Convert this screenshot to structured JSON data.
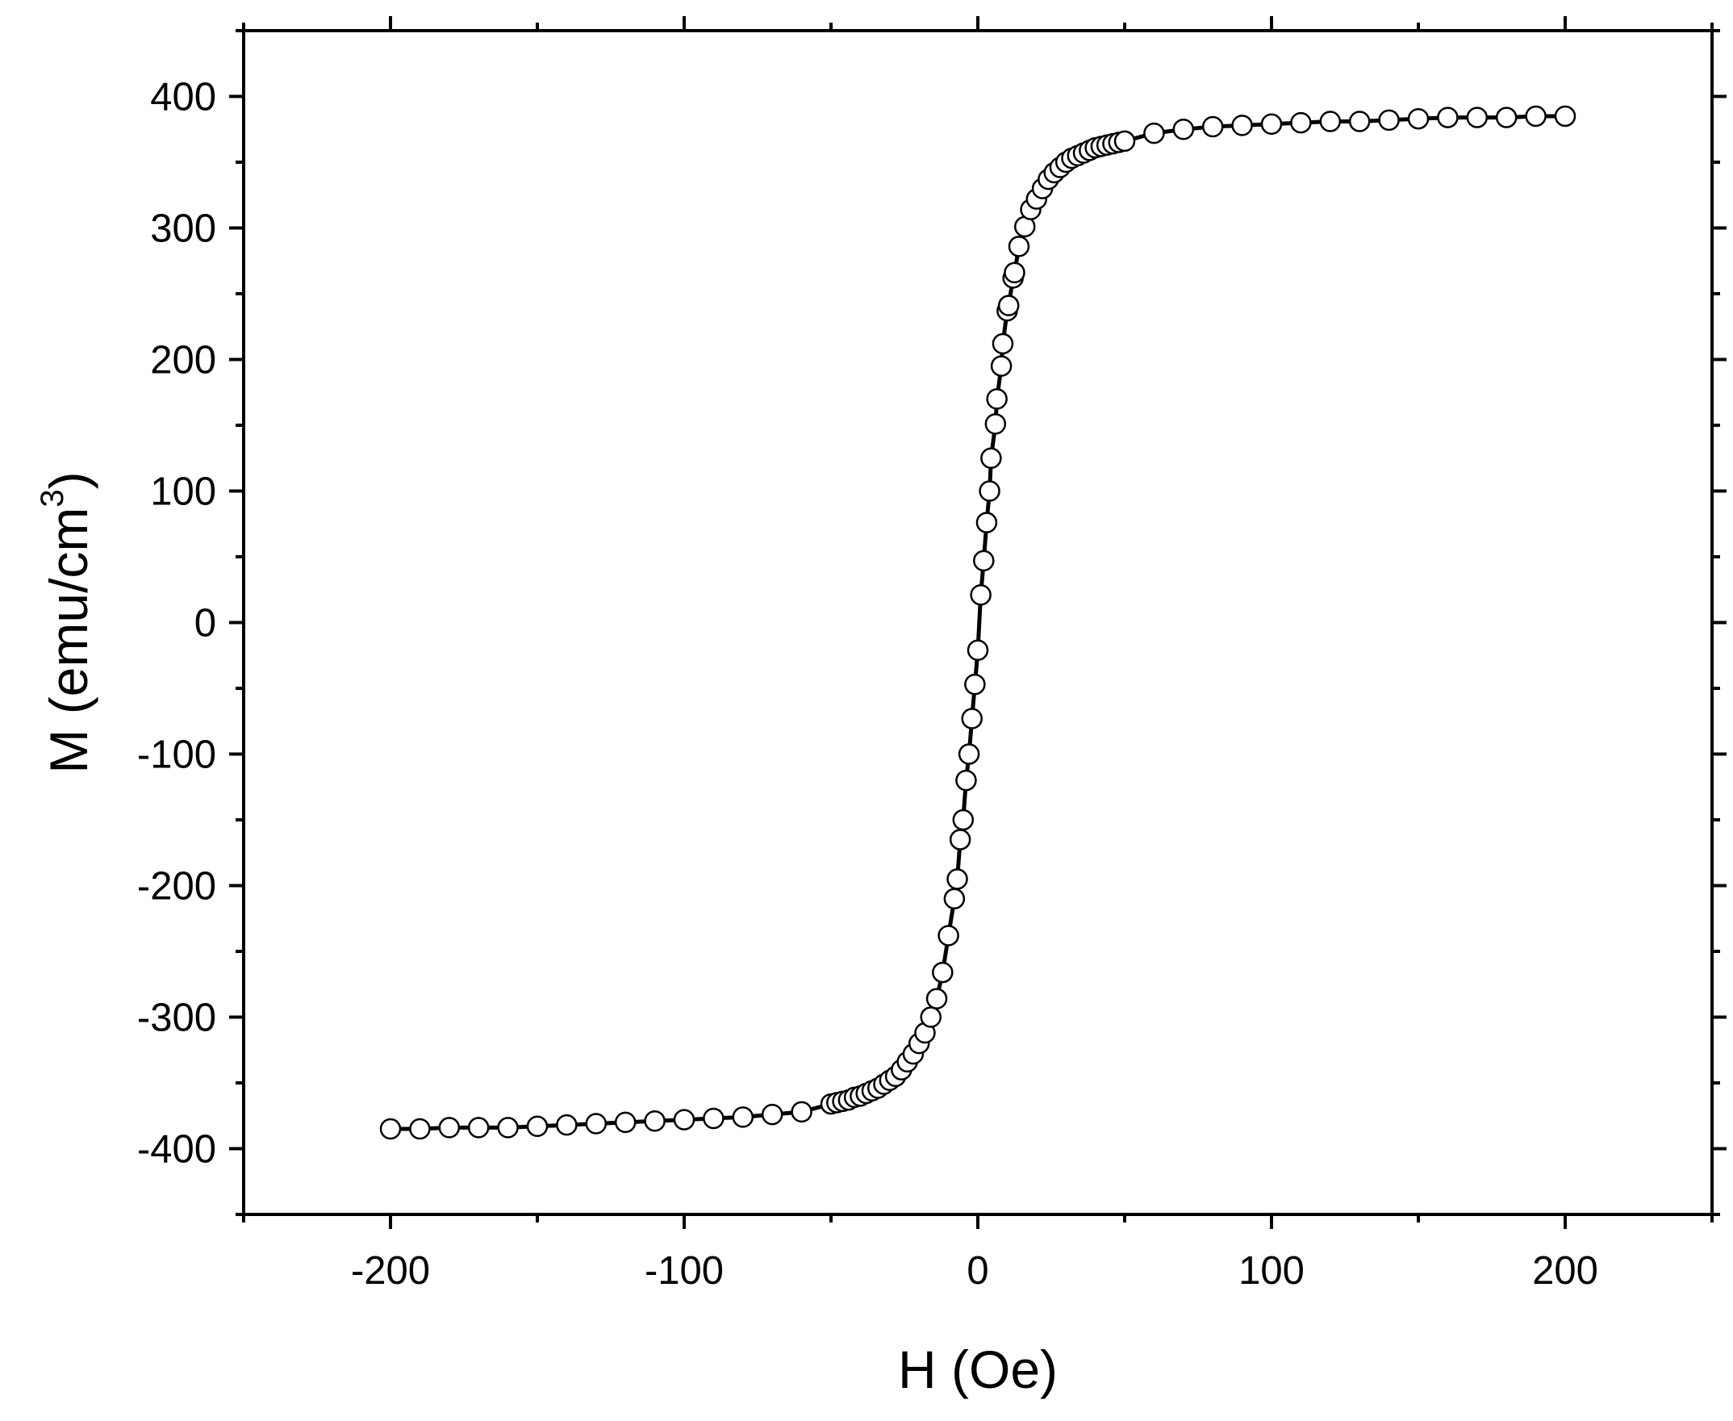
{
  "chart_data": {
    "type": "scatter",
    "xlabel": "H (Oe)",
    "ylabel": {
      "text": "M (emu/cm",
      "superscript": "3",
      "suffix": ")"
    },
    "xlim": [
      -250,
      250
    ],
    "ylim": [
      -450,
      450
    ],
    "xticks": [
      -200,
      -100,
      0,
      100,
      200
    ],
    "xtick_labels": [
      "-200",
      "-100",
      "0",
      "100",
      "200"
    ],
    "yticks": [
      -400,
      -300,
      -200,
      -100,
      0,
      100,
      200,
      300,
      400
    ],
    "ytick_labels": [
      "-400",
      "-300",
      "-200",
      "-100",
      "0",
      "100",
      "200",
      "300",
      "400"
    ],
    "x_minor_step": 50,
    "y_minor_step": 50,
    "grid": false,
    "legend": "none",
    "marker": "open-circle",
    "line_color": "#000000",
    "marker_fill": "#ffffff",
    "series": [
      {
        "points": [
          [
            -200,
            -385
          ],
          [
            -190,
            -385
          ],
          [
            -180,
            -384
          ],
          [
            -170,
            -384
          ],
          [
            -160,
            -384
          ],
          [
            -150,
            -383
          ],
          [
            -140,
            -382
          ],
          [
            -130,
            -381
          ],
          [
            -120,
            -380
          ],
          [
            -110,
            -379
          ],
          [
            -100,
            -378
          ],
          [
            -90,
            -377
          ],
          [
            -80,
            -376
          ],
          [
            -70,
            -374
          ],
          [
            -60,
            -372
          ],
          [
            -50,
            -366
          ],
          [
            -48,
            -365
          ],
          [
            -46,
            -364
          ],
          [
            -44,
            -363
          ],
          [
            -42,
            -361
          ],
          [
            -40,
            -360
          ],
          [
            -38,
            -358
          ],
          [
            -36,
            -356
          ],
          [
            -34,
            -354
          ],
          [
            -32,
            -351
          ],
          [
            -30,
            -348
          ],
          [
            -28,
            -345
          ],
          [
            -26,
            -340
          ],
          [
            -24,
            -334
          ],
          [
            -22,
            -328
          ],
          [
            -20,
            -320
          ],
          [
            -18,
            -312
          ],
          [
            -16,
            -300
          ],
          [
            -14,
            -286
          ],
          [
            -12,
            -266
          ],
          [
            -10,
            -238
          ],
          [
            -8,
            -210
          ],
          [
            -7,
            -195
          ],
          [
            -6,
            -165
          ],
          [
            -5,
            -150
          ],
          [
            -4,
            -120
          ],
          [
            -3,
            -100
          ],
          [
            -2,
            -73
          ],
          [
            -1,
            -47
          ],
          [
            0,
            -21
          ],
          [
            1,
            21
          ],
          [
            2,
            47
          ],
          [
            3,
            76
          ],
          [
            4,
            100
          ],
          [
            4.5,
            125
          ],
          [
            6,
            151
          ],
          [
            6.5,
            170
          ],
          [
            8,
            195
          ],
          [
            8.5,
            212
          ],
          [
            10,
            237
          ],
          [
            10.5,
            241
          ],
          [
            12,
            262
          ],
          [
            12.5,
            266
          ],
          [
            14,
            286
          ],
          [
            16,
            301
          ],
          [
            18,
            314
          ],
          [
            20,
            322
          ],
          [
            22,
            330
          ],
          [
            24,
            337
          ],
          [
            26,
            342
          ],
          [
            28,
            346
          ],
          [
            30,
            350
          ],
          [
            32,
            353
          ],
          [
            34,
            355
          ],
          [
            36,
            357
          ],
          [
            38,
            359
          ],
          [
            40,
            361
          ],
          [
            42,
            362
          ],
          [
            44,
            363
          ],
          [
            46,
            364
          ],
          [
            48,
            365
          ],
          [
            50,
            366
          ],
          [
            60,
            372
          ],
          [
            70,
            375
          ],
          [
            80,
            377
          ],
          [
            90,
            378
          ],
          [
            100,
            379
          ],
          [
            110,
            380
          ],
          [
            120,
            381
          ],
          [
            130,
            381
          ],
          [
            140,
            382
          ],
          [
            150,
            383
          ],
          [
            160,
            384
          ],
          [
            170,
            384
          ],
          [
            180,
            384
          ],
          [
            190,
            385
          ],
          [
            200,
            385
          ]
        ]
      }
    ]
  }
}
